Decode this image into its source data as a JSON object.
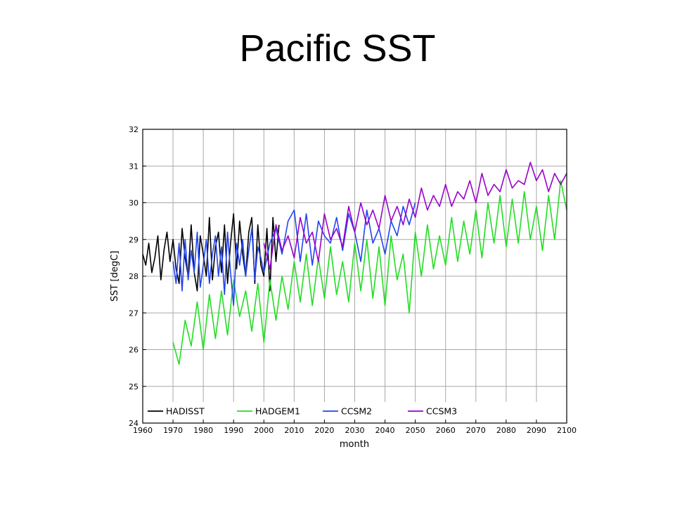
{
  "title": "Pacific SST",
  "chart_data": {
    "type": "line",
    "xlabel": "month",
    "ylabel": "SST [degC]",
    "xlim": [
      1960,
      2100
    ],
    "ylim": [
      24,
      32
    ],
    "xticks": [
      "1960",
      "1970",
      "1980",
      "1990",
      "2000",
      "2010",
      "2020",
      "2030",
      "2040",
      "2050",
      "2060",
      "2070",
      "2080",
      "2090",
      "2100"
    ],
    "yticks": [
      "24",
      "25",
      "26",
      "27",
      "28",
      "29",
      "30",
      "31",
      "32"
    ],
    "grid": true,
    "legend_position": "bottom-left",
    "series": [
      {
        "name": "HADISST",
        "color": "#000000",
        "x": [
          1960,
          1961,
          1962,
          1963,
          1964,
          1965,
          1966,
          1967,
          1968,
          1969,
          1970,
          1971,
          1972,
          1973,
          1974,
          1975,
          1976,
          1977,
          1978,
          1979,
          1980,
          1981,
          1982,
          1983,
          1984,
          1985,
          1986,
          1987,
          1988,
          1989,
          1990,
          1991,
          1992,
          1993,
          1994,
          1995,
          1996,
          1997,
          1998,
          1999,
          2000,
          2001,
          2002,
          2003,
          2004,
          2005
        ],
        "y": [
          28.6,
          28.3,
          28.9,
          28.1,
          28.5,
          29.1,
          27.9,
          28.7,
          29.2,
          28.4,
          29.0,
          28.2,
          27.8,
          29.3,
          28.5,
          28.0,
          29.4,
          28.1,
          27.6,
          29.1,
          28.6,
          28.0,
          29.6,
          27.9,
          28.8,
          29.2,
          28.1,
          29.4,
          27.8,
          28.9,
          29.7,
          28.2,
          29.5,
          28.6,
          28.0,
          29.2,
          29.6,
          27.8,
          29.4,
          28.3,
          28.0,
          29.3,
          27.6,
          29.6,
          28.4,
          29.4
        ]
      },
      {
        "name": "HADGEM1",
        "color": "#22dd22",
        "x": [
          1970,
          1972,
          1974,
          1976,
          1978,
          1980,
          1982,
          1984,
          1986,
          1988,
          1990,
          1992,
          1994,
          1996,
          1998,
          2000,
          2002,
          2004,
          2006,
          2008,
          2010,
          2012,
          2014,
          2016,
          2018,
          2020,
          2022,
          2024,
          2026,
          2028,
          2030,
          2032,
          2034,
          2036,
          2038,
          2040,
          2042,
          2044,
          2046,
          2048,
          2050,
          2052,
          2054,
          2056,
          2058,
          2060,
          2062,
          2064,
          2066,
          2068,
          2070,
          2072,
          2074,
          2076,
          2078,
          2080,
          2082,
          2084,
          2086,
          2088,
          2090,
          2092,
          2094,
          2096,
          2098,
          2100
        ],
        "y": [
          26.2,
          25.6,
          26.8,
          26.1,
          27.3,
          26.0,
          27.5,
          26.3,
          27.6,
          26.4,
          27.9,
          26.9,
          27.6,
          26.5,
          27.8,
          26.2,
          27.9,
          26.8,
          28.0,
          27.1,
          28.4,
          27.3,
          28.6,
          27.2,
          28.5,
          27.4,
          28.8,
          27.5,
          28.4,
          27.3,
          28.9,
          27.6,
          29.0,
          27.4,
          28.8,
          27.2,
          29.1,
          27.9,
          28.6,
          27.0,
          29.2,
          28.0,
          29.4,
          28.2,
          29.1,
          28.3,
          29.6,
          28.4,
          29.5,
          28.6,
          29.8,
          28.5,
          30.0,
          28.9,
          30.2,
          28.8,
          30.1,
          28.9,
          30.3,
          29.0,
          29.9,
          28.7,
          30.2,
          29.0,
          30.6,
          29.8
        ]
      },
      {
        "name": "CCSM2",
        "color": "#2244ee",
        "x": [
          1970,
          1971,
          1972,
          1973,
          1974,
          1975,
          1976,
          1977,
          1978,
          1979,
          1980,
          1981,
          1982,
          1983,
          1984,
          1985,
          1986,
          1987,
          1988,
          1989,
          1990,
          1991,
          1992,
          1993,
          1994,
          1995,
          1996,
          1997,
          1998,
          1999,
          2000,
          2002,
          2004,
          2006,
          2008,
          2010,
          2012,
          2014,
          2016,
          2018,
          2020,
          2022,
          2024,
          2026,
          2028,
          2030,
          2032,
          2034,
          2036,
          2038,
          2040,
          2042,
          2044,
          2046,
          2048,
          2050
        ],
        "y": [
          28.4,
          27.8,
          28.9,
          27.6,
          29.0,
          27.9,
          28.7,
          28.1,
          29.2,
          27.7,
          28.3,
          29.0,
          27.8,
          28.6,
          29.1,
          28.0,
          28.8,
          27.5,
          29.2,
          28.1,
          27.2,
          28.9,
          28.3,
          29.0,
          28.0,
          28.7,
          29.3,
          27.9,
          28.8,
          28.5,
          28.1,
          28.9,
          29.3,
          28.6,
          29.5,
          29.8,
          28.4,
          29.7,
          28.3,
          29.5,
          29.1,
          28.9,
          29.6,
          28.7,
          29.7,
          29.2,
          28.4,
          29.8,
          28.9,
          29.3,
          28.6,
          29.5,
          29.1,
          29.9,
          29.4,
          30.0
        ]
      },
      {
        "name": "CCSM3",
        "color": "#9900cc",
        "x": [
          2000,
          2002,
          2004,
          2006,
          2008,
          2010,
          2012,
          2014,
          2016,
          2018,
          2020,
          2022,
          2024,
          2026,
          2028,
          2030,
          2032,
          2034,
          2036,
          2038,
          2040,
          2042,
          2044,
          2046,
          2048,
          2050,
          2052,
          2054,
          2056,
          2058,
          2060,
          2062,
          2064,
          2066,
          2068,
          2070,
          2072,
          2074,
          2076,
          2078,
          2080,
          2082,
          2084,
          2086,
          2088,
          2090,
          2092,
          2094,
          2096,
          2098,
          2100
        ],
        "y": [
          28.9,
          28.2,
          29.4,
          28.7,
          29.1,
          28.5,
          29.6,
          28.9,
          29.2,
          28.4,
          29.7,
          29.0,
          29.3,
          28.8,
          29.9,
          29.2,
          30.0,
          29.4,
          29.8,
          29.3,
          30.2,
          29.5,
          29.9,
          29.4,
          30.1,
          29.6,
          30.4,
          29.8,
          30.2,
          29.9,
          30.5,
          29.9,
          30.3,
          30.1,
          30.6,
          30.0,
          30.8,
          30.2,
          30.5,
          30.3,
          30.9,
          30.4,
          30.6,
          30.5,
          31.1,
          30.6,
          30.9,
          30.3,
          30.8,
          30.5,
          30.8
        ]
      }
    ]
  }
}
